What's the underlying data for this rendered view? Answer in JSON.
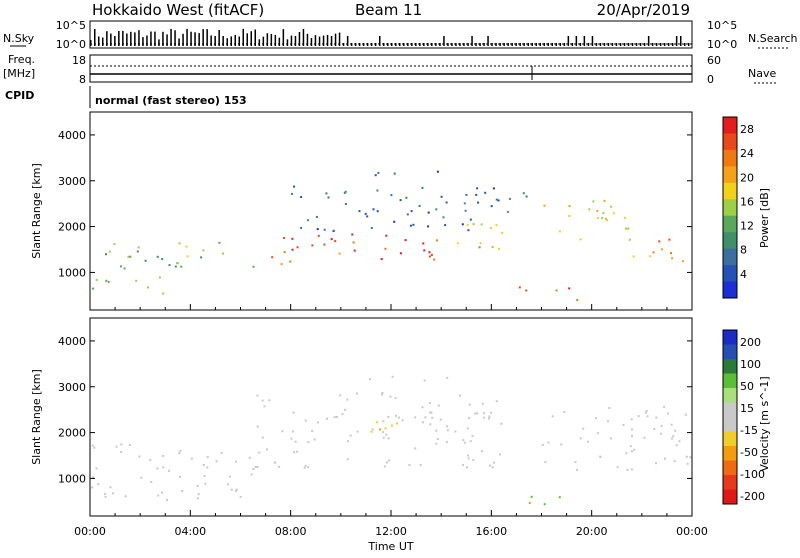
{
  "header": {
    "station": "Hokkaido West (fitACF)",
    "beam": "Beam 11",
    "date": "20/Apr/2019"
  },
  "params": {
    "nsky_label": "N.Sky",
    "nsky_ticks": [
      "10^5",
      "10^0"
    ],
    "nsearch_label": "N.Search",
    "nsearch_ticks": [
      "10^5",
      "10^0"
    ],
    "freq_label": "Freq.",
    "freq_unit": "[MHz]",
    "freq_ticks": [
      "18",
      "8"
    ],
    "nave_label": "Nave",
    "nave_ticks": [
      "60",
      "0"
    ],
    "cpid_label": "CPID",
    "cpid_text": "normal (fast stereo) 153"
  },
  "x_axis": {
    "label": "Time UT",
    "ticks": [
      "00:00",
      "04:00",
      "08:00",
      "12:00",
      "16:00",
      "20:00",
      "00:00"
    ]
  },
  "colors": {
    "power": [
      "#1a2fd6",
      "#2452b5",
      "#3a6fa0",
      "#3f8f6a",
      "#5aa85a",
      "#9fcf45",
      "#f0d21c",
      "#f5a21a",
      "#f07a12",
      "#e8491a",
      "#e21d1d"
    ],
    "velocity": [
      "#1c2bc4",
      "#274fb3",
      "#2a7a3a",
      "#5bbf35",
      "#a8e07a",
      "#c9c9c9",
      "#c9c9c9",
      "#f0cd2a",
      "#f39c12",
      "#f06a12",
      "#e53b1b",
      "#e11818"
    ]
  },
  "chart_data": [
    {
      "type": "heatmap",
      "title": "",
      "xlabel": "Time UT",
      "ylabel": "Slant Range [km]",
      "xlim": [
        0,
        24
      ],
      "ylim": [
        180,
        4500
      ],
      "yticks": [
        1000,
        2000,
        3000,
        4000
      ],
      "colorbar": {
        "label": "Power [dB]",
        "range": [
          0,
          30
        ],
        "ticks": [
          "4",
          "8",
          "12",
          "16",
          "20",
          "24",
          "28"
        ]
      },
      "regions": [
        {
          "t0": 0,
          "t1": 3,
          "r0": 1000,
          "r1": 1650,
          "value": 12
        },
        {
          "t0": 0,
          "t1": 3,
          "r0": 550,
          "r1": 950,
          "value": 13
        },
        {
          "t0": 3,
          "t1": 6.5,
          "r0": 1100,
          "r1": 1700,
          "value": 14
        },
        {
          "t0": 6.5,
          "t1": 10,
          "r0": 1200,
          "r1": 1850,
          "value": 24
        },
        {
          "t0": 10,
          "t1": 14,
          "r0": 1300,
          "r1": 1900,
          "value": 27
        },
        {
          "t0": 14,
          "t1": 16.5,
          "r0": 1500,
          "r1": 2200,
          "value": 16
        },
        {
          "t0": 8,
          "t1": 16.5,
          "r0": 1900,
          "r1": 2900,
          "value": 6
        },
        {
          "t0": 16.5,
          "t1": 17.5,
          "r0": 2200,
          "r1": 2900,
          "value": 10
        },
        {
          "t0": 18,
          "t1": 21.5,
          "r0": 1700,
          "r1": 2600,
          "value": 18
        },
        {
          "t0": 21.5,
          "t1": 24,
          "r0": 1200,
          "r1": 1800,
          "value": 22
        },
        {
          "t0": 17,
          "t1": 19.5,
          "r0": 400,
          "r1": 700,
          "value": 27
        },
        {
          "t0": 11,
          "t1": 15,
          "r0": 3100,
          "r1": 3250,
          "value": 5
        }
      ]
    },
    {
      "type": "heatmap",
      "title": "",
      "xlabel": "Time UT",
      "ylabel": "Slant Range [km]",
      "xlim": [
        0,
        24
      ],
      "ylim": [
        180,
        4500
      ],
      "yticks": [
        1000,
        2000,
        3000,
        4000
      ],
      "colorbar": {
        "label": "Velocity [m s^-1]",
        "ticks": [
          "200",
          "100",
          "50",
          "15",
          "-15",
          "-50",
          "-100",
          "-200"
        ]
      },
      "regions": [
        {
          "t0": 0,
          "t1": 6.5,
          "r0": 550,
          "r1": 1800,
          "value": 0
        },
        {
          "t0": 6.5,
          "t1": 16.5,
          "r0": 1200,
          "r1": 2900,
          "value": 0
        },
        {
          "t0": 11,
          "t1": 12.5,
          "r0": 1900,
          "r1": 2500,
          "value": -40
        },
        {
          "t0": 18,
          "t1": 24,
          "r0": 1200,
          "r1": 2600,
          "value": 0
        },
        {
          "t0": 17.5,
          "t1": 19,
          "r0": 400,
          "r1": 700,
          "value": 60
        },
        {
          "t0": 16.5,
          "t1": 17.5,
          "r0": 450,
          "r1": 650,
          "value": -80
        },
        {
          "t0": 11,
          "t1": 15,
          "r0": 3100,
          "r1": 3250,
          "value": 0
        }
      ]
    }
  ]
}
